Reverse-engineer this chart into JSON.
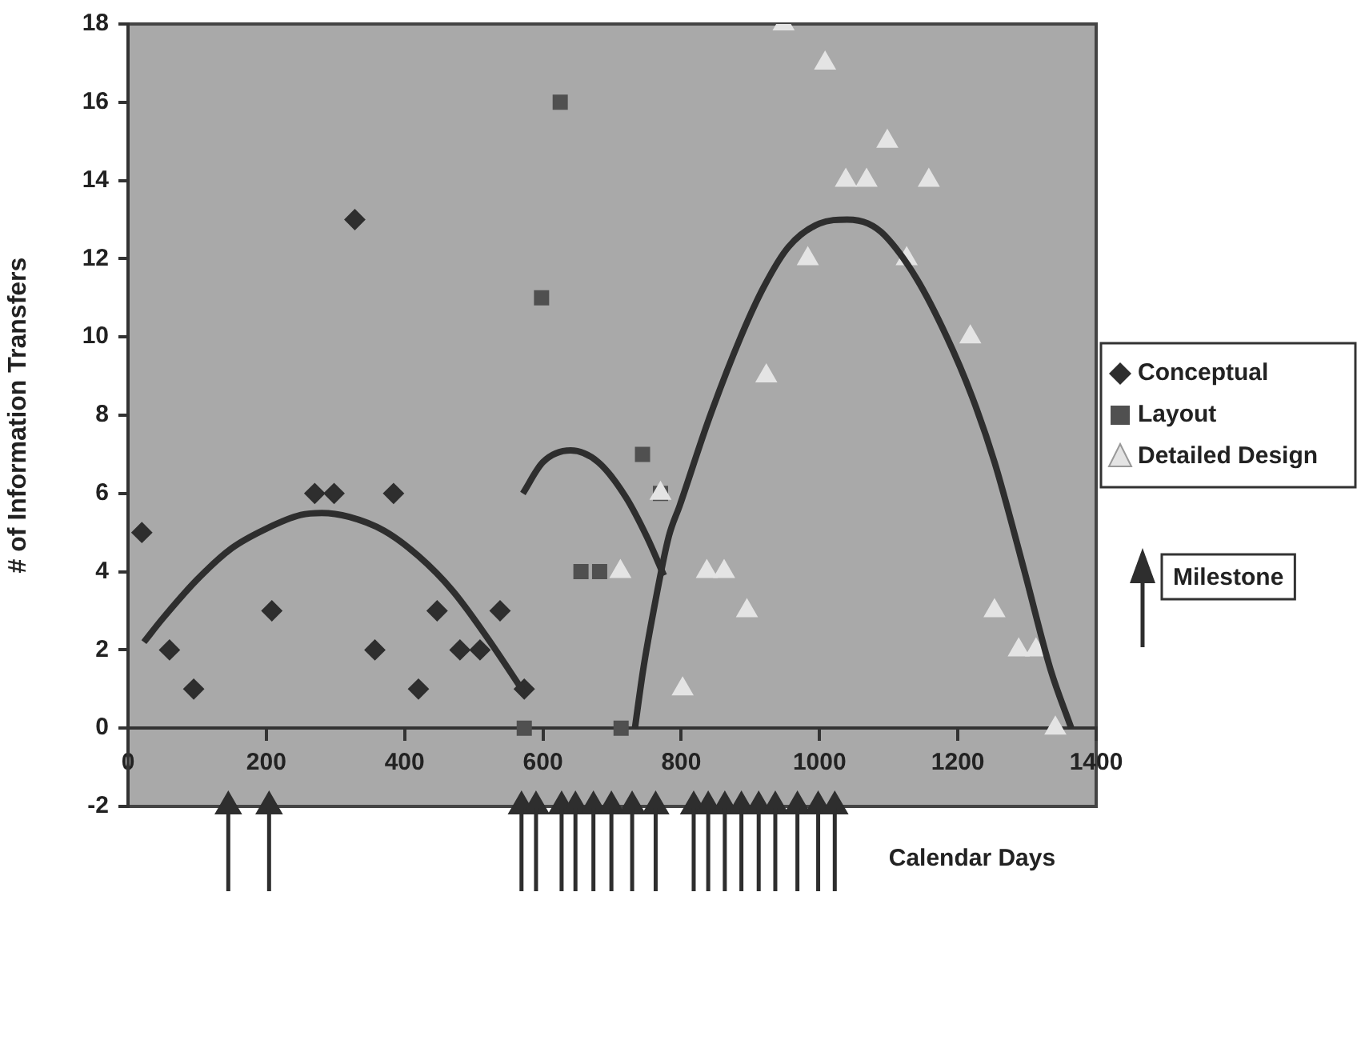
{
  "chart_data": {
    "type": "scatter",
    "xlabel": "Calendar Days",
    "ylabel": "# of Information Transfers",
    "xlim": [
      0,
      1400
    ],
    "xticks": [
      0,
      200,
      400,
      600,
      800,
      1000,
      1200,
      1400
    ],
    "ylim": [
      -2,
      18
    ],
    "yticks": [
      -2,
      0,
      2,
      4,
      6,
      8,
      10,
      12,
      14,
      16,
      18
    ],
    "grid": false,
    "legend": "right",
    "series": [
      {
        "name": "Conceptual",
        "type": "scatter",
        "marker": "diamond",
        "color": "#2e2e2e",
        "x": [
          20,
          60,
          95,
          208,
          270,
          298,
          328,
          357,
          384,
          420,
          447,
          480,
          509,
          538,
          573
        ],
        "values": [
          5,
          2,
          1,
          3,
          6,
          6,
          13,
          2,
          6,
          1,
          3,
          2,
          2,
          3,
          1
        ]
      },
      {
        "name": "Layout",
        "type": "scatter",
        "marker": "square",
        "color": "#505050",
        "x": [
          573,
          598,
          625,
          655,
          682,
          713,
          744,
          770
        ],
        "values": [
          0,
          11,
          16,
          4,
          4,
          0,
          7,
          6
        ]
      },
      {
        "name": "Detailed Design",
        "type": "scatter",
        "marker": "triangle",
        "color": "#e4e4e4",
        "x": [
          712,
          770,
          802,
          837,
          862,
          895,
          923,
          948,
          983,
          1008,
          1038,
          1068,
          1098,
          1126,
          1158,
          1218,
          1253,
          1288,
          1313,
          1341
        ],
        "values": [
          4,
          6,
          1,
          4,
          4,
          3,
          9,
          18,
          12,
          17,
          14,
          14,
          15,
          12,
          14,
          10,
          3,
          2,
          2,
          0
        ]
      },
      {
        "type": "line",
        "marker": "none",
        "color": "#2e2e2e",
        "x": [
          23,
          50,
          100,
          150,
          200,
          250,
          280,
          320,
          370,
          420,
          470,
          520,
          573
        ],
        "values": [
          2.2,
          2.8,
          3.8,
          4.6,
          5.1,
          5.45,
          5.5,
          5.4,
          5.05,
          4.4,
          3.5,
          2.3,
          0.9
        ]
      },
      {
        "type": "line",
        "marker": "none",
        "color": "#2e2e2e",
        "x": [
          571,
          600,
          640,
          680,
          720,
          750,
          775
        ],
        "values": [
          6,
          6.8,
          7.1,
          6.8,
          5.9,
          4.9,
          3.9
        ]
      },
      {
        "type": "line",
        "marker": "none",
        "color": "#2e2e2e",
        "x": [
          733,
          745,
          760,
          782,
          798,
          840,
          886,
          920,
          955,
          1000,
          1040,
          1070,
          1094,
          1140,
          1184,
          1220,
          1253,
          1295,
          1334,
          1364
        ],
        "values": [
          0,
          1.5,
          3,
          4.9,
          5.7,
          7.9,
          10,
          11.3,
          12.3,
          12.9,
          13,
          12.9,
          12.6,
          11.5,
          10,
          8.5,
          6.8,
          4.1,
          1.5,
          0
        ]
      },
      {
        "name": "Milestone",
        "marker": "triangle",
        "color": "#2e2e2e",
        "x": [
          145,
          204,
          569,
          590,
          627,
          647,
          673,
          699,
          729,
          763,
          818,
          839,
          863,
          887,
          912,
          936,
          968,
          998,
          1022
        ],
        "values": [
          -2,
          -2,
          -2,
          -2,
          -2,
          -2,
          -2,
          -2,
          -2,
          -2,
          -2,
          -2,
          -2,
          -2,
          -2,
          -2,
          -2,
          -2,
          -2
        ]
      }
    ]
  }
}
